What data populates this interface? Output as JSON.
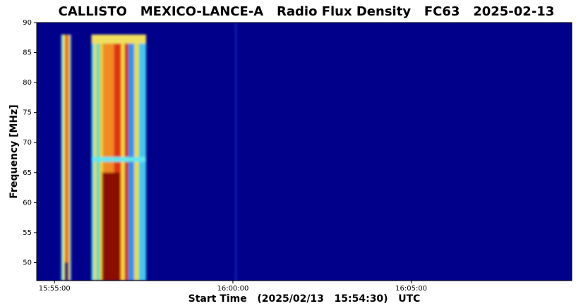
{
  "chart_data": {
    "type": "spectrogram",
    "title": "CALLISTO   MEXICO-LANCE-A   Radio Flux Density   FC63   2025-02-13",
    "x_label": "Start Time   (2025/02/13   15:54:30)   UTC",
    "y_label": "Frequency [MHz]",
    "background": "#00008b",
    "xlim": [
      "15:54:30",
      "16:09:30"
    ],
    "xticks": [
      "15:55:00",
      "16:00:00",
      "16:05:00"
    ],
    "ylim": [
      47,
      90
    ],
    "yticks": [
      50,
      55,
      60,
      65,
      70,
      75,
      80,
      85,
      90
    ],
    "strips": [
      {
        "start": "15:55:11",
        "end": "15:55:14",
        "fmin": 47,
        "fmax": 88,
        "color": "#3fd8e8"
      },
      {
        "start": "15:55:14",
        "end": "15:55:18",
        "fmin": 47,
        "fmax": 88,
        "color": "#f5e83a"
      },
      {
        "start": "15:55:18",
        "end": "15:55:22",
        "fmin": 50,
        "fmax": 88,
        "color": "#e8401a"
      },
      {
        "start": "15:55:22",
        "end": "15:55:26",
        "fmin": 47,
        "fmax": 88,
        "color": "#f0c030"
      },
      {
        "start": "15:55:26",
        "end": "15:55:28",
        "fmin": 47,
        "fmax": 88,
        "color": "#3fb8f0"
      },
      {
        "start": "16:00:04",
        "end": "16:00:06",
        "fmin": 47,
        "fmax": 90,
        "color": "#1438c8"
      },
      {
        "start": "15:56:02",
        "end": "15:56:06",
        "fmin": 47,
        "fmax": 88,
        "color": "#3fd8e8"
      },
      {
        "start": "15:56:06",
        "end": "15:56:10",
        "fmin": 47,
        "fmax": 88,
        "color": "#f5e83a"
      },
      {
        "start": "15:56:10",
        "end": "15:56:16",
        "fmin": 47,
        "fmax": 88,
        "color": "#5ee0c0"
      },
      {
        "start": "15:56:16",
        "end": "15:56:22",
        "fmin": 47,
        "fmax": 88,
        "color": "#f5d030"
      },
      {
        "start": "15:56:22",
        "end": "15:56:40",
        "fmin": 47,
        "fmax": 88,
        "color": "#f08a20"
      },
      {
        "start": "15:56:40",
        "end": "15:56:52",
        "fmin": 47,
        "fmax": 88,
        "color": "#e03018"
      },
      {
        "start": "15:56:52",
        "end": "15:56:58",
        "fmin": 47,
        "fmax": 88,
        "color": "#f5e040"
      },
      {
        "start": "15:56:58",
        "end": "15:57:04",
        "fmin": 47,
        "fmax": 88,
        "color": "#d82010"
      },
      {
        "start": "15:57:04",
        "end": "15:57:14",
        "fmin": 47,
        "fmax": 88,
        "color": "#3090f0"
      },
      {
        "start": "15:57:14",
        "end": "15:57:22",
        "fmin": 47,
        "fmax": 88,
        "color": "#e8e040"
      },
      {
        "start": "15:57:22",
        "end": "15:57:34",
        "fmin": 47,
        "fmax": 88,
        "color": "#40c8f0"
      },
      {
        "start": "15:56:20",
        "end": "15:56:50",
        "fmin": 47,
        "fmax": 65,
        "color": "#8b0a00"
      },
      {
        "start": "15:56:02",
        "end": "15:57:34",
        "fmin": 86.5,
        "fmax": 88,
        "color": "#f0e060"
      },
      {
        "start": "15:56:02",
        "end": "15:57:34",
        "fmin": 66.8,
        "fmax": 67.6,
        "color": "#60e8f0"
      }
    ]
  }
}
